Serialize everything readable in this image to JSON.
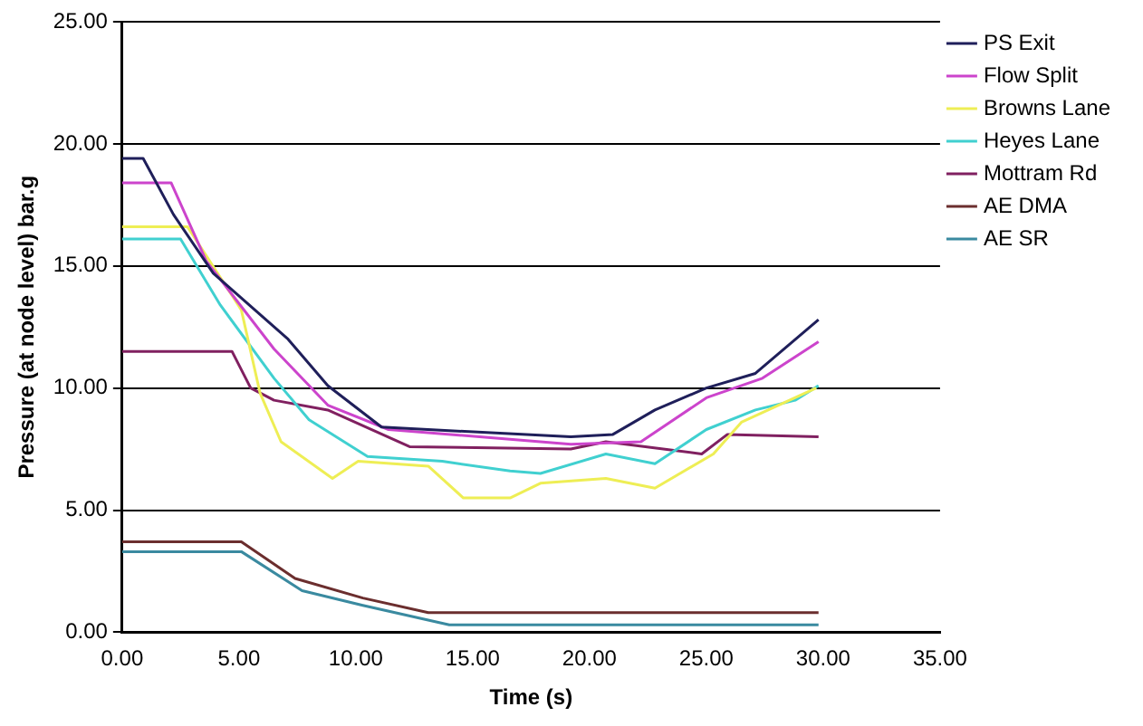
{
  "chart_data": {
    "type": "line",
    "xlabel": "Time (s)",
    "ylabel": "Pressure (at node level) bar.g",
    "xlim": [
      0,
      35
    ],
    "ylim": [
      0,
      25
    ],
    "xticks": [
      {
        "value": 0,
        "label": "0.00"
      },
      {
        "value": 5,
        "label": "5.00"
      },
      {
        "value": 10,
        "label": "10.00"
      },
      {
        "value": 15,
        "label": "15.00"
      },
      {
        "value": 20,
        "label": "20.00"
      },
      {
        "value": 25,
        "label": "25.00"
      },
      {
        "value": 30,
        "label": "30.00"
      },
      {
        "value": 35,
        "label": "35.00"
      }
    ],
    "yticks": [
      {
        "value": 0,
        "label": "0.00"
      },
      {
        "value": 5,
        "label": "5.00"
      },
      {
        "value": 10,
        "label": "10.00"
      },
      {
        "value": 15,
        "label": "15.00"
      },
      {
        "value": 20,
        "label": "20.00"
      },
      {
        "value": 25,
        "label": "25.00"
      }
    ],
    "grid": "y",
    "legend": "right",
    "marker": "none",
    "line_style": "solid",
    "series": [
      {
        "name": "PS Exit",
        "color": "#1f1f5a",
        "x": [
          0,
          0.9,
          2.2,
          3.9,
          7.1,
          8.8,
          11.1,
          19.2,
          21.0,
          22.8,
          25.0,
          27.1,
          29.8
        ],
        "values": [
          19.4,
          19.4,
          17.1,
          14.7,
          12.0,
          10.1,
          8.4,
          8.0,
          8.1,
          9.1,
          10.0,
          10.6,
          12.8
        ]
      },
      {
        "name": "Flow Split",
        "color": "#cc44cc",
        "x": [
          0,
          2.1,
          3.6,
          6.5,
          8.8,
          11.4,
          19.2,
          22.2,
          25.0,
          27.4,
          29.8
        ],
        "values": [
          18.4,
          18.4,
          15.2,
          11.6,
          9.3,
          8.3,
          7.7,
          7.8,
          9.6,
          10.4,
          11.9
        ]
      },
      {
        "name": "Browns Lane",
        "color": "#eeee55",
        "x": [
          0,
          2.8,
          5.1,
          5.9,
          6.8,
          9.0,
          10.1,
          13.1,
          14.6,
          16.6,
          17.9,
          20.7,
          22.8,
          25.3,
          26.5,
          29.7
        ],
        "values": [
          16.6,
          16.6,
          13.2,
          9.8,
          7.8,
          6.3,
          7.0,
          6.8,
          5.5,
          5.5,
          6.1,
          6.3,
          5.9,
          7.3,
          8.6,
          10.0
        ]
      },
      {
        "name": "Heyes Lane",
        "color": "#40d0d0",
        "x": [
          0,
          2.5,
          4.2,
          6.5,
          8.0,
          10.5,
          13.7,
          16.6,
          17.9,
          20.7,
          22.8,
          25.0,
          27.1,
          28.8,
          29.8
        ],
        "values": [
          16.1,
          16.1,
          13.4,
          10.4,
          8.7,
          7.2,
          7.0,
          6.6,
          6.5,
          7.3,
          6.9,
          8.3,
          9.1,
          9.5,
          10.1
        ]
      },
      {
        "name": "Mottram Rd",
        "color": "#802060",
        "x": [
          0,
          4.7,
          5.5,
          6.5,
          8.8,
          12.3,
          19.2,
          20.7,
          24.8,
          25.9,
          29.8
        ],
        "values": [
          11.5,
          11.5,
          10.0,
          9.5,
          9.1,
          7.6,
          7.5,
          7.8,
          7.3,
          8.1,
          8.0
        ]
      },
      {
        "name": "AE DMA",
        "color": "#6b2e2e",
        "x": [
          0,
          5.1,
          7.4,
          10.3,
          13.1,
          29.8
        ],
        "values": [
          3.7,
          3.7,
          2.2,
          1.4,
          0.8,
          0.8
        ]
      },
      {
        "name": "AE SR",
        "color": "#3a8aa0",
        "x": [
          0,
          5.1,
          7.7,
          10.3,
          14.0,
          29.8
        ],
        "values": [
          3.3,
          3.3,
          1.7,
          1.1,
          0.3,
          0.3
        ]
      }
    ]
  }
}
